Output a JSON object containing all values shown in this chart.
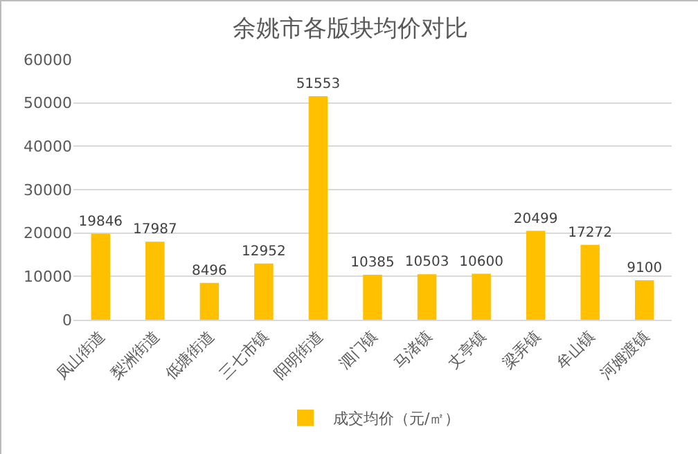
{
  "chart_data": {
    "type": "bar",
    "title": "余姚市各版块均价对比",
    "categories": [
      "凤山街道",
      "梨洲街道",
      "低塘街道",
      "三七市镇",
      "阳明街道",
      "泗门镇",
      "马渚镇",
      "丈亭镇",
      "梁弄镇",
      "牟山镇",
      "河姆渡镇"
    ],
    "series": [
      {
        "name": "成交均价（元/㎡）",
        "color": "#ffc000",
        "values": [
          19846,
          17987,
          8496,
          12952,
          51553,
          10385,
          10503,
          10600,
          20499,
          17272,
          9100
        ]
      }
    ],
    "ylim": [
      0,
      60000
    ],
    "yticks": [
      0,
      10000,
      20000,
      30000,
      40000,
      50000,
      60000
    ],
    "grid": "y",
    "legend": "bottom",
    "data_labels": true
  }
}
